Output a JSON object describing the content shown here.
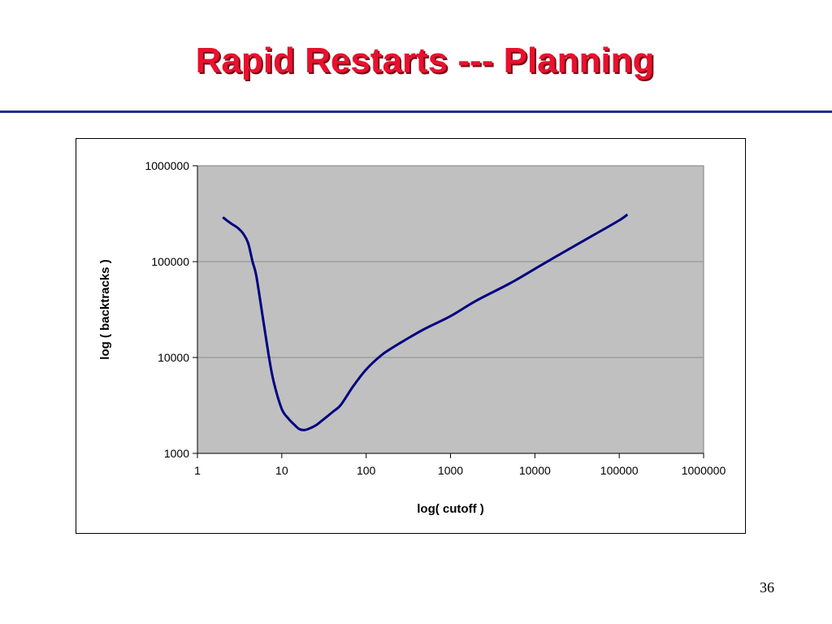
{
  "slide": {
    "title": "Rapid Restarts --- Planning",
    "page_number": "36",
    "title_color": "#e8112d",
    "rule_color": "#1f2f8f"
  },
  "chart_data": {
    "type": "line",
    "title": "",
    "xlabel": "log( cutoff )",
    "ylabel": "log ( backtracks )",
    "x_scale": "log",
    "y_scale": "log",
    "xlim": [
      1,
      1000000
    ],
    "ylim": [
      1000,
      1000000
    ],
    "x_ticks": [
      "1",
      "10",
      "100",
      "1000",
      "10000",
      "100000",
      "1000000"
    ],
    "y_ticks": [
      "1000",
      "10000",
      "100000",
      "1000000"
    ],
    "grid": "horizontal major gridlines",
    "legend": "none",
    "plot_background": "#c0c0c0",
    "line_color": "#000080",
    "series": [
      {
        "x": [
          2,
          2.5,
          3,
          3.5,
          4,
          4.5,
          5,
          6,
          7,
          8,
          10,
          12,
          14,
          16,
          18,
          20,
          25,
          30,
          40,
          50,
          70,
          100,
          150,
          200,
          300,
          500,
          1000,
          2000,
          5000,
          10000,
          20000,
          50000,
          100000,
          125000
        ],
        "y": [
          290000,
          250000,
          225000,
          195000,
          155000,
          100000,
          70000,
          25000,
          10500,
          5600,
          2900,
          2300,
          2000,
          1800,
          1750,
          1780,
          1950,
          2200,
          2700,
          3200,
          5000,
          7500,
          10500,
          12500,
          15500,
          20000,
          27000,
          39000,
          59000,
          84000,
          120000,
          190000,
          270000,
          310000
        ]
      }
    ]
  }
}
